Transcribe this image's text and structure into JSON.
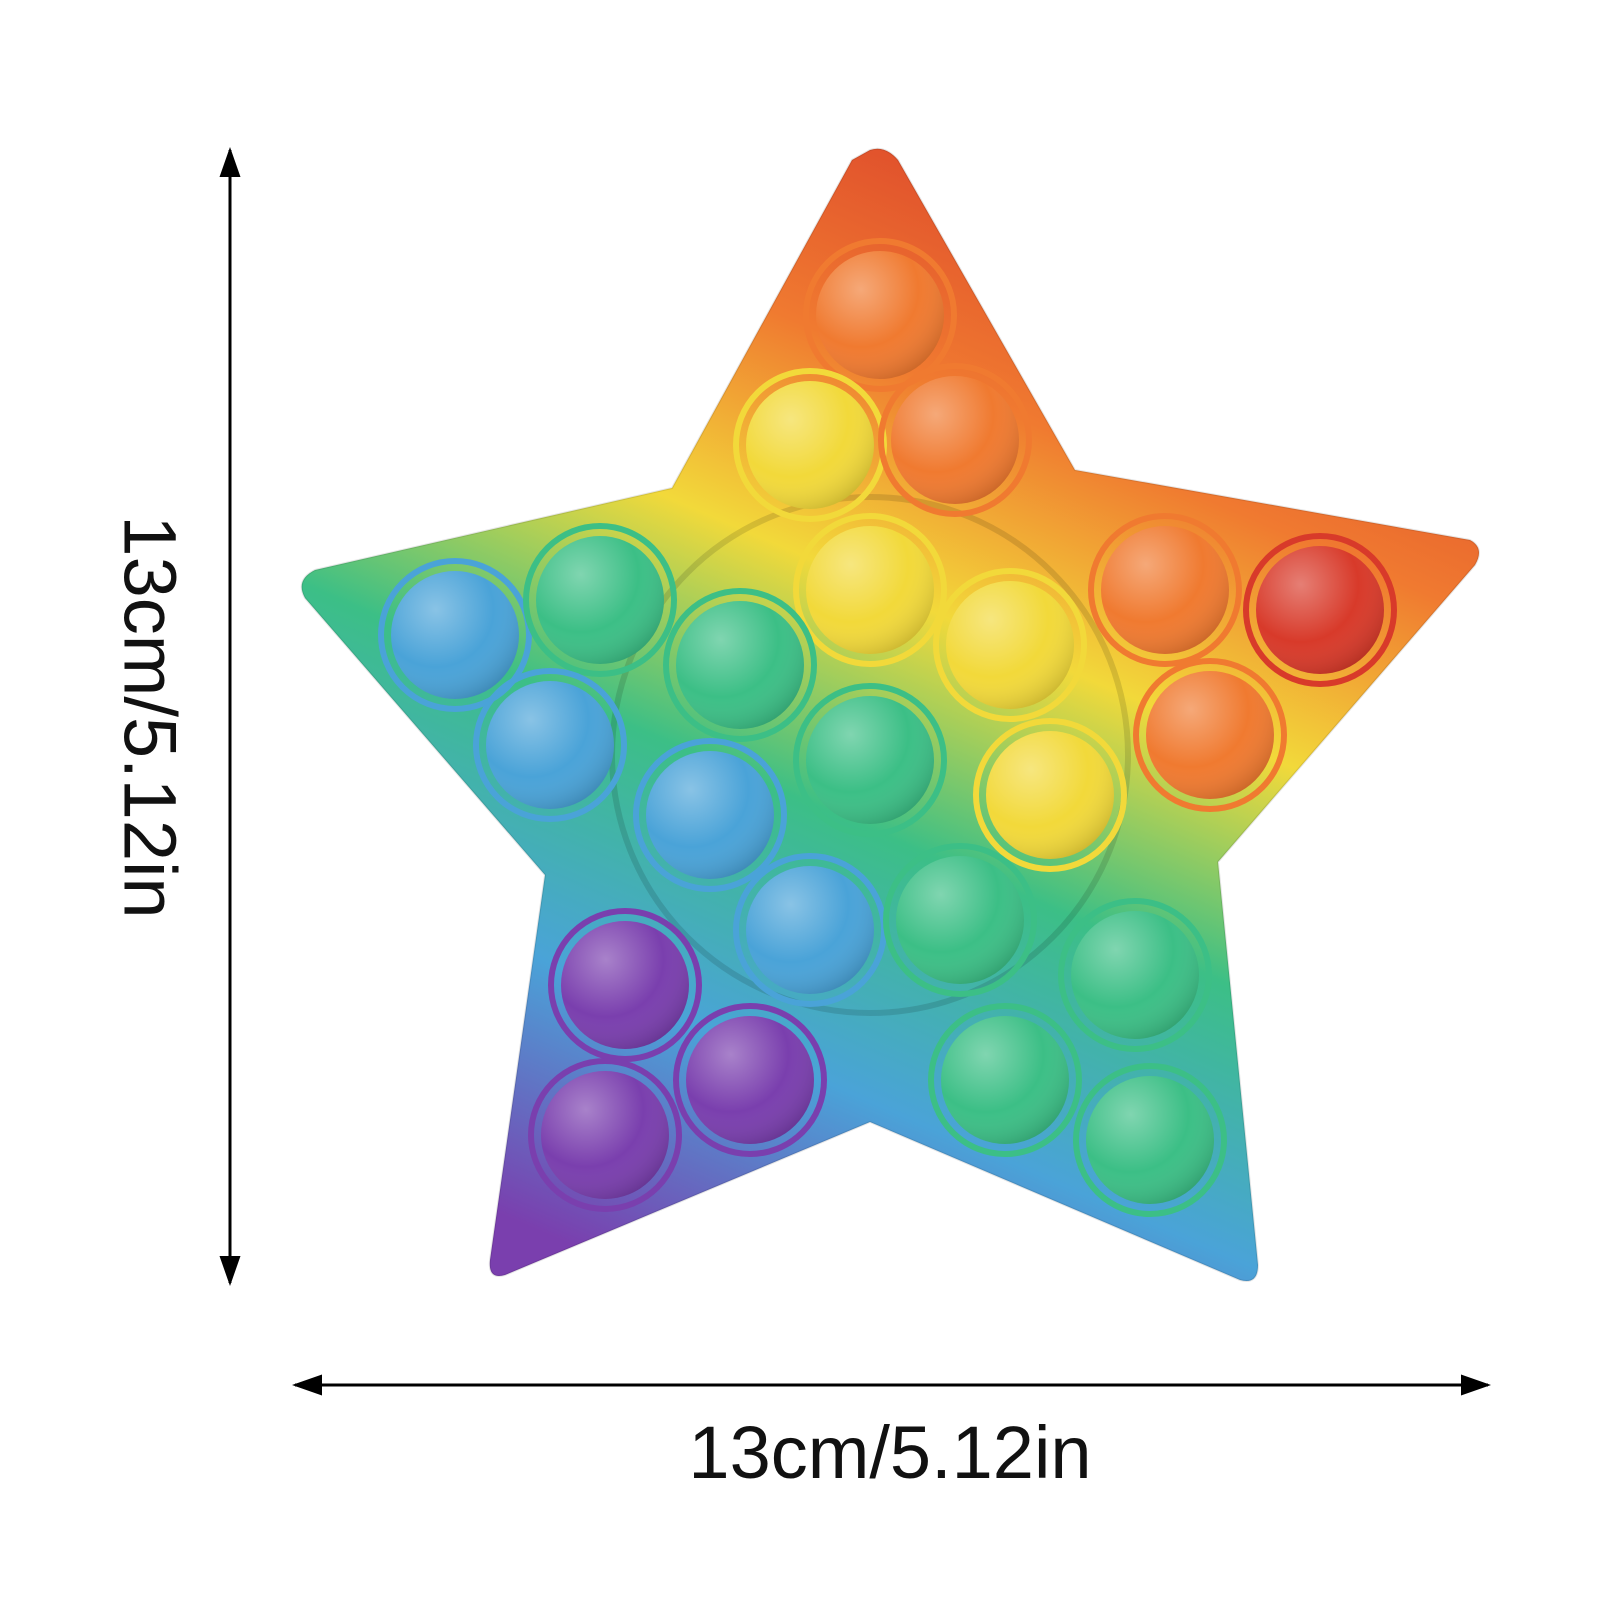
{
  "product": "rainbow star push-pop bubble toy",
  "dimensions": {
    "height_label": "13cm/5.12in",
    "width_label": "13cm/5.12in"
  },
  "colors": {
    "red": "#d83a2a",
    "orange": "#f07a30",
    "yellow": "#f2d93a",
    "green": "#3cbf86",
    "blue": "#4aa3d8",
    "purple": "#7a3fae",
    "arrow": "#000000"
  },
  "bubbles": {
    "top_arm": [
      "orange",
      "yellow",
      "orange"
    ],
    "center": [
      "yellow",
      "yellow",
      "green",
      "green",
      "yellow",
      "blue",
      "blue",
      "green"
    ],
    "left_arm": [
      "blue",
      "green",
      "blue"
    ],
    "right_arm": [
      "orange",
      "red",
      "orange"
    ],
    "bottom_left_arm": [
      "purple",
      "purple",
      "purple"
    ],
    "bottom_right_arm": [
      "green",
      "green",
      "green"
    ]
  }
}
